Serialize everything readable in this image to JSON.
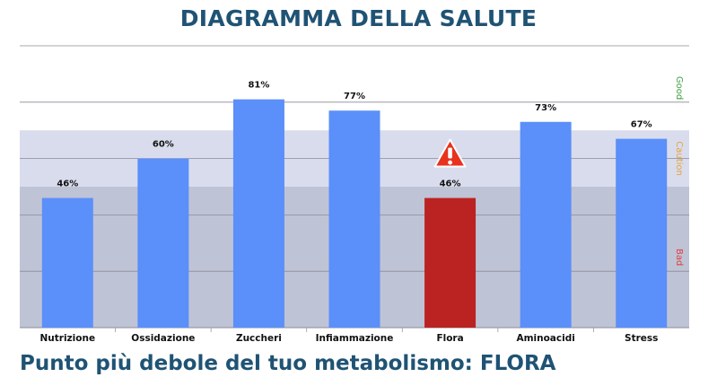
{
  "header": {
    "title": "DIAGRAMMA DELLA SALUTE"
  },
  "footer": {
    "message": "Punto più debole del tuo metabolismo: FLORA"
  },
  "chart_data": {
    "type": "bar",
    "title": "DIAGRAMMA DELLA SALUTE",
    "xlabel": "",
    "ylabel": "",
    "ylim": [
      0,
      100
    ],
    "grid": true,
    "categories": [
      "Nutrizione",
      "Ossidazione",
      "Zuccheri",
      "Infiammazione",
      "Flora",
      "Aminoacidi",
      "Stress"
    ],
    "values": [
      46,
      60,
      81,
      77,
      46,
      73,
      67
    ],
    "value_labels": [
      "46%",
      "60%",
      "81%",
      "77%",
      "46%",
      "73%",
      "67%"
    ],
    "bar_colors": [
      "#5b8ff9",
      "#5b8ff9",
      "#5b8ff9",
      "#5b8ff9",
      "#bb2222",
      "#5b8ff9",
      "#5b8ff9"
    ],
    "warning_category": "Flora",
    "zones": [
      {
        "label": "Good",
        "from": 70,
        "to": 100,
        "color": "#ffffff",
        "label_color": "#3aa040"
      },
      {
        "label": "Caution",
        "from": 50,
        "to": 70,
        "color": "#d8dcec",
        "label_color": "#e8a33a"
      },
      {
        "label": "Bad",
        "from": 0,
        "to": 50,
        "color": "#bfc3d6",
        "label_color": "#e04040"
      }
    ]
  }
}
